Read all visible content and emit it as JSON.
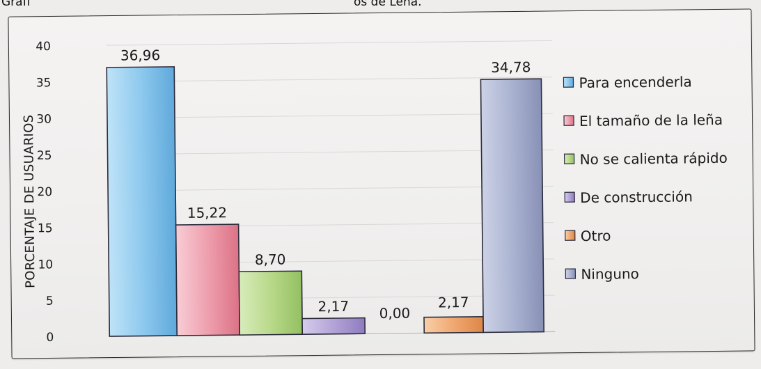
{
  "caption": {
    "left": "Grafi",
    "right": "os de Leña."
  },
  "chart_data": {
    "type": "bar",
    "ylabel": "PORCENTAJE DE USUARIOS",
    "ylim": [
      0,
      40
    ],
    "yticks": [
      "0",
      "5",
      "10",
      "15",
      "20",
      "25",
      "30",
      "35",
      "40"
    ],
    "grid": true,
    "legend_position": "right",
    "series": [
      {
        "name": "Para encenderla",
        "value": 36.96,
        "label": "36,96",
        "color": "#8ec9ee"
      },
      {
        "name": "El tamaño de la leña",
        "value": 15.22,
        "label": "15,22",
        "color": "#ee9fae"
      },
      {
        "name": "No se calienta rápido",
        "value": 8.7,
        "label": "8,70",
        "color": "#b9d98a"
      },
      {
        "name": "De construcción",
        "value": 2.17,
        "label": "2,17",
        "color": "#b3a3d6"
      },
      {
        "name": "Otro",
        "value": 0.0,
        "label": "0,00",
        "color": "#f0a870"
      },
      {
        "name": "Ninguno",
        "value": 34.78,
        "label": "34,78",
        "color": "#aab3d1"
      }
    ],
    "extra_bar": {
      "value": 2.17,
      "label": "2,17",
      "color": "#f0a870"
    }
  }
}
